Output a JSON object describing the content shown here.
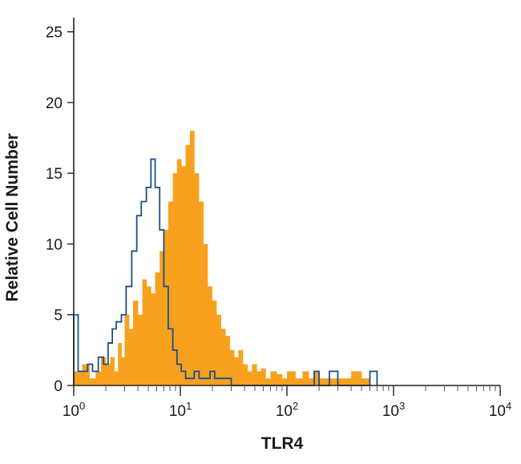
{
  "chart_data": {
    "type": "area",
    "title": "",
    "xlabel": "TLR4",
    "ylabel": "Relative Cell Number",
    "x_scale": "log",
    "xlim": [
      1,
      10000
    ],
    "ylim": [
      0,
      26
    ],
    "y_ticks": [
      0,
      5,
      10,
      15,
      20,
      25
    ],
    "x_ticks": [
      {
        "value": 1,
        "base": "10",
        "exp": "0"
      },
      {
        "value": 10,
        "base": "10",
        "exp": "1"
      },
      {
        "value": 100,
        "base": "10",
        "exp": "2"
      },
      {
        "value": 1000,
        "base": "10",
        "exp": "3"
      },
      {
        "value": 10000,
        "base": "10",
        "exp": "4"
      }
    ],
    "grid": false,
    "legend": false,
    "series": [
      {
        "style": "filled",
        "color": "#F7A11E",
        "x": [
          1.0,
          1.2,
          1.4,
          1.6,
          1.8,
          2.0,
          2.2,
          2.4,
          2.6,
          2.8,
          3.0,
          3.3,
          3.6,
          4.0,
          4.4,
          4.8,
          5.3,
          5.8,
          6.4,
          7.0,
          7.7,
          8.5,
          9.3,
          10.2,
          11.2,
          12.3,
          13.5,
          14.9,
          16.4,
          18.0,
          19.8,
          21.8,
          24.0,
          26.4,
          29.0,
          32.0,
          35.0,
          38.5,
          42.5,
          47.0,
          52.0,
          57.0,
          63.0,
          70.0,
          80.0,
          90.0,
          100.0,
          120.0,
          140.0,
          160.0,
          180.0,
          200.0,
          250.0,
          300.0,
          400.0,
          500.0,
          600.0,
          700.0
        ],
        "y": [
          1,
          1.5,
          0.5,
          1,
          2,
          1.5,
          2,
          1,
          3,
          2,
          5,
          4,
          6,
          5,
          7.5,
          7,
          6.5,
          8,
          9.5,
          11,
          13,
          15,
          16,
          15.5,
          17,
          18,
          15,
          13,
          10,
          7,
          6,
          5,
          4,
          3.5,
          2.5,
          2,
          2.5,
          1.5,
          1,
          1.5,
          1,
          1.2,
          0.5,
          1,
          0.8,
          0.5,
          1,
          0.5,
          1,
          0.5,
          1,
          0.5,
          0.5,
          0.5,
          1,
          0.5,
          0,
          0
        ]
      },
      {
        "style": "outline",
        "color": "#1B4F8A",
        "x": [
          1.0,
          1.1,
          1.2,
          1.35,
          1.5,
          1.7,
          1.9,
          2.1,
          2.3,
          2.5,
          2.8,
          3.1,
          3.5,
          3.9,
          4.3,
          4.8,
          5.3,
          5.8,
          6.4,
          7.0,
          7.7,
          8.5,
          9.3,
          10.2,
          11.2,
          12.3,
          13.5,
          15.0,
          17.0,
          19.0,
          21.0,
          25.0,
          30.0,
          50.0,
          100.0,
          180.0,
          200.0,
          250.0,
          300.0,
          500.0,
          600.0,
          700.0
        ],
        "y": [
          5,
          1,
          1,
          1.5,
          1,
          2,
          1.5,
          3,
          4,
          4.5,
          5,
          7,
          9.5,
          12,
          13,
          14,
          16,
          14,
          11,
          7,
          4,
          2.5,
          1.5,
          1,
          0.5,
          0.5,
          1,
          0.5,
          0.5,
          1,
          0.5,
          0.5,
          0,
          0,
          0,
          1,
          0,
          1,
          0,
          0,
          1,
          0
        ]
      }
    ]
  }
}
